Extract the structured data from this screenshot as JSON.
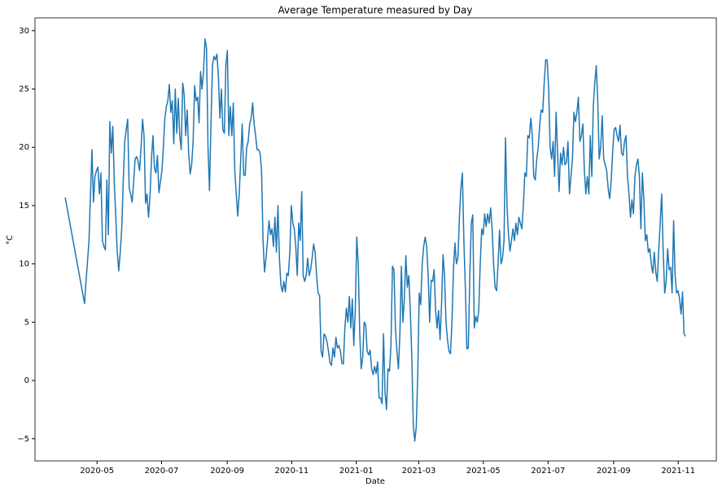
{
  "chart_data": {
    "type": "line",
    "title": "Average Temperature measured by Day",
    "xlabel": "Date",
    "ylabel": "°C",
    "x": [
      0,
      1,
      2,
      3,
      4,
      5,
      6,
      7,
      8,
      9,
      10,
      11,
      12,
      13,
      14,
      15,
      16,
      17,
      18,
      19,
      20,
      21,
      22,
      23,
      24,
      25,
      26,
      27,
      28,
      29,
      30,
      31,
      32,
      33,
      34,
      35,
      36,
      37,
      38,
      39,
      40,
      41,
      42,
      43,
      44,
      45,
      46,
      47,
      48,
      49,
      50,
      51,
      52,
      53,
      54,
      55,
      56,
      57,
      58,
      59,
      60,
      61,
      62,
      63,
      64,
      65,
      66,
      67,
      68,
      69,
      70,
      71,
      72,
      73,
      74,
      75,
      76,
      77,
      78,
      79,
      80,
      81,
      82,
      83,
      84,
      85,
      86,
      87,
      88,
      89,
      90,
      91,
      92,
      93,
      94,
      95,
      96,
      97,
      98,
      99,
      100,
      101,
      102,
      103,
      104,
      105,
      106,
      107,
      108,
      109,
      110,
      111,
      112,
      113,
      114,
      115,
      116,
      117,
      118,
      119,
      120,
      121,
      122,
      123,
      124,
      125,
      126,
      127,
      128,
      129,
      130,
      131,
      132,
      133,
      134,
      135,
      136,
      137,
      138,
      139,
      140,
      141,
      142,
      143,
      144,
      145,
      146,
      147,
      148,
      149,
      150,
      151,
      152,
      153,
      154,
      155,
      156,
      157,
      158,
      159,
      160,
      161,
      162,
      163,
      164,
      165,
      166,
      167,
      168,
      169,
      170,
      171,
      172,
      173,
      174,
      175,
      176,
      177,
      178,
      179,
      180,
      181,
      182,
      183,
      184,
      185,
      186,
      187,
      188,
      189,
      190,
      191,
      192,
      193,
      194,
      195,
      196,
      197,
      198,
      199,
      200,
      201,
      202,
      203,
      204,
      205,
      206,
      207,
      208,
      209,
      210,
      211,
      212,
      213,
      214,
      215,
      216,
      217,
      218,
      219,
      220,
      221,
      222,
      223,
      224,
      225,
      226,
      227,
      228,
      229,
      230,
      231,
      232,
      233,
      234,
      235,
      236,
      237,
      238,
      239,
      240,
      241,
      242,
      243,
      244,
      245,
      246,
      247,
      248,
      249,
      250,
      251,
      252,
      253,
      254,
      255,
      256,
      257,
      258,
      259,
      260,
      261,
      262,
      263,
      264,
      265,
      266,
      267,
      268,
      269,
      270,
      271,
      272,
      273,
      274,
      275,
      276,
      277,
      278,
      279,
      280,
      281,
      282,
      283,
      284,
      285,
      286,
      287,
      288,
      289,
      290,
      291,
      292,
      293,
      294,
      295,
      296,
      297,
      298,
      299,
      300,
      301,
      302,
      303,
      304,
      305,
      306,
      307,
      308,
      309,
      310,
      311,
      312,
      313,
      314,
      315,
      316,
      317,
      318,
      319,
      320,
      321,
      322,
      323,
      324,
      325,
      326,
      327,
      328,
      329,
      330,
      331,
      332,
      333,
      334,
      335,
      336,
      337,
      338,
      339,
      340,
      341,
      342,
      343,
      344,
      345,
      346,
      347,
      348,
      349,
      350,
      351,
      352,
      353,
      354,
      355,
      356,
      357,
      358,
      359,
      360,
      361,
      362,
      363,
      364,
      365,
      366,
      367,
      368,
      369,
      370,
      371,
      372,
      373,
      374,
      375,
      376,
      377,
      378,
      379,
      380,
      381,
      382,
      383,
      384,
      385,
      386,
      387,
      388,
      389,
      390,
      391,
      392,
      393,
      394,
      395,
      396,
      397,
      398,
      399,
      400,
      401,
      402,
      403,
      404,
      405,
      406,
      407,
      408,
      409,
      410,
      411,
      412,
      413,
      414,
      415,
      416,
      417
    ],
    "values": [
      15.7,
      15.0,
      14.3,
      13.6,
      12.9,
      12.2,
      11.5,
      10.8,
      10.1,
      9.4,
      8.7,
      8.0,
      7.3,
      6.6,
      8.5,
      10.2,
      12,
      16,
      19.8,
      15.3,
      17.5,
      18,
      18.3,
      16,
      17.8,
      12,
      11.5,
      11.2,
      17.2,
      12.5,
      22.2,
      19.5,
      21.8,
      17,
      14,
      11,
      9.4,
      11,
      13,
      17,
      20.5,
      21.5,
      22.4,
      16.5,
      16,
      15.3,
      17,
      19,
      19.2,
      18.8,
      18,
      20,
      22.4,
      21,
      15.2,
      16,
      14,
      15.8,
      19,
      21,
      18.2,
      17.8,
      19.3,
      16.1,
      17,
      18,
      20,
      22.5,
      23.5,
      24,
      25.4,
      23,
      24,
      20.3,
      25,
      21.2,
      24.2,
      21,
      19.8,
      25.5,
      24.5,
      21,
      23.2,
      19.5,
      17.7,
      18.5,
      20.5,
      25.3,
      24,
      24.3,
      22.1,
      26.5,
      25,
      26.5,
      29.3,
      28.5,
      20,
      16.3,
      22,
      27,
      27.8,
      27.5,
      28,
      26,
      22.5,
      25,
      21.5,
      21.2,
      27,
      28.3,
      21,
      23.5,
      21,
      23.8,
      18,
      16,
      14.1,
      16,
      19,
      22,
      17.6,
      17.6,
      20,
      20.5,
      22,
      22.5,
      23.8,
      22,
      21,
      19.8,
      19.8,
      19.5,
      18,
      12,
      9.3,
      10.5,
      12,
      13.7,
      12.5,
      13,
      11.5,
      14,
      11,
      15,
      10.5,
      8.2,
      7.6,
      8.5,
      7.6,
      9.2,
      9,
      11,
      15,
      13.5,
      13,
      11.5,
      9,
      13.5,
      12,
      16.2,
      9,
      8.5,
      9,
      10.5,
      9,
      9.5,
      10.5,
      11.7,
      11,
      9,
      7.5,
      7.3,
      2.5,
      2,
      4,
      3.8,
      3.3,
      2.5,
      1.5,
      1.3,
      2.8,
      2,
      3.7,
      2.8,
      3,
      2.5,
      1.5,
      1.4,
      4.5,
      6.2,
      5,
      7.2,
      4.5,
      7,
      3,
      6,
      12.3,
      10,
      4,
      1,
      2,
      5,
      4.8,
      2.5,
      2.2,
      2.6,
      1,
      0.5,
      1.2,
      0.6,
      1.6,
      -1.5,
      -1.5,
      -2,
      4,
      -1,
      -2.5,
      1,
      0.8,
      3,
      9.8,
      9.5,
      4.5,
      2.5,
      1,
      4,
      9.8,
      5,
      7,
      10.7,
      8,
      9,
      6,
      2,
      -3.8,
      -5.2,
      -4,
      0.5,
      7.5,
      6.5,
      10,
      11.5,
      12.3,
      11.5,
      9,
      5,
      8.6,
      8.5,
      9.5,
      6,
      4.5,
      6,
      3.5,
      6.5,
      10.8,
      9,
      5,
      3.5,
      2.5,
      2.3,
      5,
      9.5,
      11.8,
      10,
      10.5,
      14,
      16.5,
      17.8,
      12,
      8,
      2.7,
      2.8,
      9,
      13.5,
      14.2,
      4.5,
      5.5,
      5,
      6,
      10,
      13,
      12.5,
      14.3,
      13.2,
      14.3,
      13.5,
      14.8,
      13,
      10,
      8,
      7.7,
      10,
      12.9,
      10,
      10.5,
      12,
      20.8,
      15,
      12.5,
      11.1,
      12,
      13,
      12,
      13.5,
      12.5,
      14,
      13.5,
      13,
      15,
      17.8,
      17.5,
      21,
      20.8,
      22.5,
      21,
      17.5,
      17.2,
      19,
      20,
      22,
      23.2,
      23,
      25.5,
      27.5,
      27.5,
      25,
      20,
      19,
      20.5,
      17.5,
      23,
      19.5,
      16.2,
      19.5,
      18.5,
      20,
      18.5,
      18.7,
      20.5,
      16,
      17.5,
      19,
      23,
      22.2,
      23,
      24.3,
      20.5,
      21,
      22,
      18,
      16,
      17.5,
      16,
      21,
      17.5,
      23.5,
      25.5,
      27,
      24,
      19,
      20,
      22.7,
      19,
      18.5,
      18,
      16.5,
      15.6,
      17,
      19.5,
      21.5,
      21.7,
      21,
      20.5,
      21.9,
      19.5,
      19.3,
      20.5,
      21,
      17.5,
      16,
      14,
      15.5,
      14.3,
      17.5,
      18.5,
      19,
      17.5,
      13,
      17.8,
      15.5,
      12,
      12.5,
      11,
      11.3,
      10,
      9.2,
      11,
      9.3,
      8.5,
      11.2,
      13.5,
      16,
      11,
      7.5,
      8.5,
      11.3,
      9.5,
      9.7,
      7.5,
      13.7,
      9,
      7.5,
      7.7,
      7,
      5.7,
      7.6,
      4,
      3.8
    ],
    "color": "#1f77b4",
    "xlim": [
      -20.3,
      437.7
    ],
    "xticks": [
      {
        "value": 21.4,
        "label": "2020-05"
      },
      {
        "value": 64.8,
        "label": "2020-07"
      },
      {
        "value": 108.9,
        "label": "2020-09"
      },
      {
        "value": 152.3,
        "label": "2020-11"
      },
      {
        "value": 195.7,
        "label": "2021-01"
      },
      {
        "value": 237.7,
        "label": "2021-03"
      },
      {
        "value": 281.1,
        "label": "2021-05"
      },
      {
        "value": 324.6,
        "label": "2021-07"
      },
      {
        "value": 368.7,
        "label": "2021-09"
      },
      {
        "value": 412.1,
        "label": "2021-11"
      }
    ],
    "ylim": [
      -6.9,
      31.1
    ],
    "yticks": [
      {
        "value": -5,
        "label": "−5"
      },
      0,
      5,
      10,
      15,
      20,
      25,
      30
    ],
    "grid": false
  }
}
